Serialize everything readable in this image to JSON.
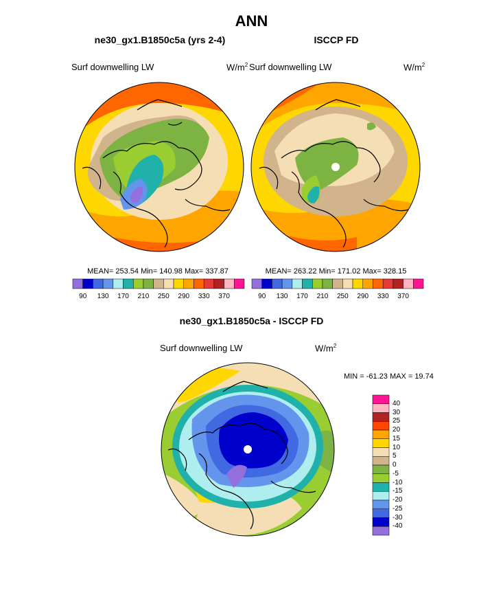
{
  "title": "ANN",
  "panels": [
    {
      "name": "model",
      "subtitle": "ne30_gx1.B1850c5a (yrs 2-4)",
      "variable": "Surf downwelling LW",
      "units_base": "W/m",
      "units_exp": "2",
      "stats": "MEAN= 253.54  Min= 140.98  Max= 337.87"
    },
    {
      "name": "obs",
      "subtitle": "ISCCP FD",
      "variable": "Surf downwelling LW",
      "units_base": "W/m",
      "units_exp": "2",
      "stats": "MEAN= 263.22  Min= 171.02  Max= 328.15"
    }
  ],
  "diff": {
    "subtitle": "ne30_gx1.B1850c5a - ISCCP FD",
    "variable": "Surf downwelling LW",
    "units_base": "W/m",
    "units_exp": "2",
    "stats": "MIN = -61.23 MAX =  19.74"
  },
  "abs_colorbar": {
    "colors": [
      "#9370DB",
      "#0000CD",
      "#4169E1",
      "#6495ED",
      "#AFEEEE",
      "#20B2AA",
      "#9ACD32",
      "#7CB342",
      "#D2B48C",
      "#F5DEB3",
      "#FFD700",
      "#FFA500",
      "#FF6600",
      "#E53935",
      "#B22222",
      "#FFB6C1",
      "#FF1493"
    ],
    "tick_labels": [
      "90",
      "130",
      "170",
      "210",
      "250",
      "290",
      "330",
      "370"
    ]
  },
  "diff_colorbar": {
    "colors": [
      "#FF1493",
      "#FFB6C1",
      "#B22222",
      "#FF4500",
      "#FFA500",
      "#FFD700",
      "#F5DEB3",
      "#D2B48C",
      "#7CB342",
      "#9ACD32",
      "#20B2AA",
      "#AFEEEE",
      "#6495ED",
      "#4169E1",
      "#0000CD",
      "#9370DB"
    ],
    "tick_labels": [
      "40",
      "30",
      "25",
      "20",
      "15",
      "10",
      "5",
      "0",
      "-5",
      "-10",
      "-15",
      "-20",
      "-25",
      "-30",
      "-40"
    ]
  }
}
